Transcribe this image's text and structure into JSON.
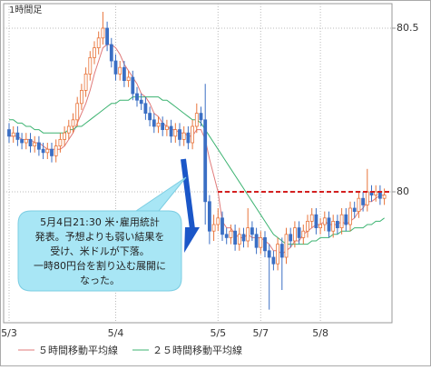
{
  "chart_data": {
    "type": "candlestick",
    "title": "1時間足",
    "categories": [
      "5/3",
      null,
      null,
      null,
      null,
      null,
      null,
      null,
      null,
      null,
      null,
      null,
      null,
      null,
      null,
      null,
      null,
      null,
      null,
      null,
      null,
      null,
      null,
      null,
      null,
      "5/4",
      null,
      null,
      null,
      null,
      null,
      null,
      null,
      null,
      null,
      null,
      null,
      null,
      null,
      null,
      null,
      null,
      null,
      null,
      null,
      null,
      null,
      null,
      null,
      "5/5",
      null,
      null,
      null,
      null,
      null,
      null,
      null,
      null,
      null,
      "5/7",
      null,
      null,
      null,
      null,
      null,
      null,
      null,
      null,
      null,
      null,
      null,
      null,
      null,
      "5/8",
      null,
      null,
      null,
      null,
      null,
      null,
      null,
      null,
      null,
      null,
      null,
      null,
      null,
      null,
      null
    ],
    "open": [
      80.19,
      80.17,
      80.18,
      80.16,
      80.15,
      80.16,
      80.14,
      80.15,
      80.13,
      80.12,
      80.13,
      80.11,
      80.14,
      80.16,
      80.18,
      80.2,
      80.22,
      80.27,
      80.31,
      80.36,
      80.41,
      80.44,
      80.47,
      80.5,
      80.45,
      80.4,
      80.36,
      80.38,
      80.34,
      80.35,
      80.3,
      80.28,
      80.27,
      80.24,
      80.22,
      80.2,
      80.21,
      80.19,
      80.2,
      80.17,
      80.19,
      80.16,
      80.18,
      80.15,
      80.2,
      80.24,
      80.22,
      79.97,
      79.88,
      79.9,
      79.92,
      79.87,
      79.86,
      79.88,
      79.84,
      79.87,
      79.85,
      79.89,
      79.87,
      79.83,
      79.86,
      79.82,
      79.8,
      79.78,
      79.84,
      79.8,
      79.87,
      79.85,
      79.89,
      79.86,
      79.88,
      79.91,
      79.93,
      79.89,
      79.9,
      79.92,
      79.88,
      79.91,
      79.89,
      79.93,
      79.9,
      79.95,
      79.94,
      79.98,
      79.96,
      80.0,
      79.99,
      80.0,
      79.98
    ],
    "high": [
      80.21,
      80.2,
      80.2,
      80.18,
      80.18,
      80.18,
      80.17,
      80.17,
      80.15,
      80.15,
      80.15,
      80.16,
      80.18,
      80.2,
      80.22,
      80.24,
      80.29,
      80.33,
      80.38,
      80.43,
      80.46,
      80.49,
      80.55,
      80.52,
      80.47,
      80.42,
      80.4,
      80.4,
      80.37,
      80.37,
      80.32,
      80.3,
      80.29,
      80.26,
      80.24,
      80.23,
      80.23,
      80.22,
      80.22,
      80.21,
      80.21,
      80.2,
      80.2,
      80.22,
      80.27,
      80.26,
      80.33,
      79.99,
      79.93,
      79.95,
      79.94,
      79.89,
      79.9,
      79.9,
      79.89,
      79.89,
      79.95,
      79.91,
      79.89,
      79.88,
      79.88,
      79.84,
      79.82,
      79.86,
      79.86,
      79.89,
      79.89,
      79.91,
      79.91,
      79.9,
      79.93,
      79.95,
      79.95,
      79.92,
      79.94,
      79.94,
      79.93,
      79.93,
      79.95,
      79.95,
      79.97,
      79.97,
      80.0,
      80.0,
      80.07,
      80.02,
      80.02,
      80.02,
      80.01
    ],
    "low": [
      80.15,
      80.15,
      80.14,
      80.13,
      80.13,
      80.12,
      80.12,
      80.11,
      80.1,
      80.1,
      80.09,
      80.09,
      80.12,
      80.14,
      80.16,
      80.18,
      80.2,
      80.25,
      80.29,
      80.34,
      80.39,
      80.42,
      80.45,
      80.43,
      80.38,
      80.34,
      80.34,
      80.32,
      80.32,
      80.28,
      80.26,
      80.25,
      80.22,
      80.2,
      80.18,
      80.18,
      80.17,
      80.17,
      80.15,
      80.15,
      80.14,
      80.14,
      80.13,
      80.13,
      80.18,
      80.2,
      79.9,
      79.84,
      79.85,
      79.88,
      79.85,
      79.84,
      79.84,
      79.82,
      79.82,
      79.83,
      79.83,
      79.85,
      79.81,
      79.81,
      79.8,
      79.64,
      79.76,
      79.76,
      79.7,
      79.78,
      79.83,
      79.83,
      79.84,
      79.84,
      79.86,
      79.89,
      79.87,
      79.87,
      79.88,
      79.86,
      79.86,
      79.87,
      79.87,
      79.88,
      79.88,
      79.92,
      79.92,
      79.94,
      79.94,
      79.97,
      79.97,
      79.96,
      79.96
    ],
    "close": [
      80.17,
      80.18,
      80.16,
      80.15,
      80.16,
      80.14,
      80.15,
      80.13,
      80.12,
      80.13,
      80.11,
      80.14,
      80.16,
      80.18,
      80.2,
      80.22,
      80.27,
      80.31,
      80.36,
      80.41,
      80.44,
      80.47,
      80.5,
      80.45,
      80.4,
      80.36,
      80.38,
      80.34,
      80.35,
      80.3,
      80.28,
      80.27,
      80.24,
      80.22,
      80.2,
      80.21,
      80.19,
      80.2,
      80.17,
      80.19,
      80.16,
      80.18,
      80.15,
      80.2,
      80.24,
      80.22,
      79.97,
      79.88,
      79.9,
      79.92,
      79.87,
      79.86,
      79.88,
      79.84,
      79.87,
      79.85,
      79.89,
      79.87,
      79.83,
      79.86,
      79.82,
      79.8,
      79.78,
      79.84,
      79.8,
      79.87,
      79.85,
      79.89,
      79.86,
      79.88,
      79.91,
      79.93,
      79.89,
      79.9,
      79.92,
      79.88,
      79.91,
      79.89,
      79.93,
      79.9,
      79.95,
      79.94,
      79.98,
      79.96,
      80.0,
      79.99,
      80.0,
      79.98,
      79.99
    ],
    "series": [
      {
        "name": "５時間移動平均線",
        "color": "#e07a7a",
        "values": [
          80.17,
          80.17,
          80.17,
          80.16,
          80.16,
          80.16,
          80.15,
          80.15,
          80.14,
          80.13,
          80.13,
          80.13,
          80.13,
          80.14,
          80.16,
          80.18,
          80.21,
          80.24,
          80.27,
          80.31,
          80.36,
          80.4,
          80.44,
          80.45,
          80.45,
          80.44,
          80.42,
          80.39,
          80.37,
          80.35,
          80.33,
          80.3,
          80.29,
          80.27,
          80.24,
          80.23,
          80.21,
          80.2,
          80.19,
          80.19,
          80.18,
          80.18,
          80.17,
          80.17,
          80.19,
          80.19,
          80.16,
          80.1,
          80.05,
          80.0,
          79.91,
          79.89,
          79.89,
          79.87,
          79.86,
          79.86,
          79.87,
          79.86,
          79.86,
          79.86,
          79.85,
          79.84,
          79.82,
          79.82,
          79.81,
          79.82,
          79.83,
          79.85,
          79.85,
          79.87,
          79.88,
          79.89,
          79.9,
          79.9,
          79.91,
          79.9,
          79.9,
          79.9,
          79.91,
          79.9,
          79.91,
          79.92,
          79.94,
          79.95,
          79.97,
          79.97,
          79.98,
          79.99,
          79.99
        ]
      },
      {
        "name": "２５時間移動平均線",
        "color": "#3cb371",
        "values": [
          80.22,
          80.22,
          80.21,
          80.21,
          80.2,
          80.2,
          80.19,
          80.19,
          80.18,
          80.18,
          80.18,
          80.18,
          80.18,
          80.18,
          80.19,
          80.19,
          80.2,
          80.2,
          80.21,
          80.22,
          80.23,
          80.24,
          80.25,
          80.26,
          80.27,
          80.27,
          80.28,
          80.28,
          80.28,
          80.29,
          80.29,
          80.29,
          80.29,
          80.29,
          80.29,
          80.29,
          80.28,
          80.28,
          80.27,
          80.26,
          80.25,
          80.24,
          80.23,
          80.22,
          80.22,
          80.21,
          80.19,
          80.17,
          80.15,
          80.13,
          80.11,
          80.09,
          80.07,
          80.05,
          80.03,
          80.01,
          79.99,
          79.97,
          79.95,
          79.93,
          79.91,
          79.89,
          79.87,
          79.86,
          79.85,
          79.84,
          79.84,
          79.84,
          79.84,
          79.84,
          79.84,
          79.85,
          79.85,
          79.86,
          79.86,
          79.86,
          79.87,
          79.87,
          79.88,
          79.88,
          79.88,
          79.89,
          79.89,
          79.89,
          79.9,
          79.9,
          79.91,
          79.91,
          79.92
        ]
      }
    ],
    "up_color": "#e8743b",
    "down_color": "#3b6fc4",
    "ylim": [
      79.6,
      80.575
    ],
    "yticks": [
      80,
      80.5
    ],
    "grid": true,
    "reference_line": {
      "value": 80,
      "color": "#d42020"
    },
    "annotation": [
      "5月4日21:30 米･雇用統計",
      "発表。予想よりも弱い結果を",
      "受け、米ドルが下落。",
      "一時80円台を割り込む展開に",
      "なった。"
    ]
  }
}
